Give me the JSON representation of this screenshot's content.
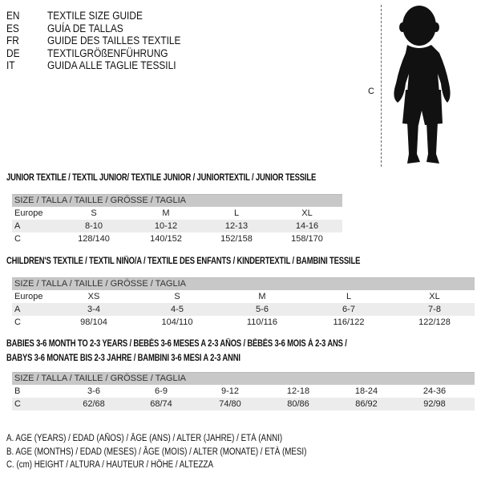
{
  "languages": [
    {
      "code": "EN",
      "text": "TEXTILE SIZE GUIDE"
    },
    {
      "code": "ES",
      "text": "GUÍA DE TALLAS"
    },
    {
      "code": "FR",
      "text": "GUIDE DES TAILLES TEXTILE"
    },
    {
      "code": "DE",
      "text": "TEXTILGRÖßENFÜHRUNG"
    },
    {
      "code": "IT",
      "text": "GUIDA ALLE TAGLIE TESSILI"
    }
  ],
  "figure": {
    "measure_label": "C",
    "icon": "baby-silhouette"
  },
  "junior": {
    "title": "JUNIOR TEXTILE / TEXTIL JUNIOR/ TEXTILE JUNIOR / JUNIORTEXTIL / JUNIOR TESSILE",
    "header": "SIZE / TALLA / TAILLE / GRÖSSE / TAGLIA",
    "rows": [
      {
        "label": "Europe",
        "values": [
          "S",
          "M",
          "L",
          "XL"
        ]
      },
      {
        "label": "A",
        "values": [
          "8-10",
          "10-12",
          "12-13",
          "14-16"
        ]
      },
      {
        "label": "C",
        "values": [
          "128/140",
          "140/152",
          "152/158",
          "158/170"
        ]
      }
    ]
  },
  "children": {
    "title": "CHILDREN'S TEXTILE / TEXTIL NIÑO/A / TEXTILE DES ENFANTS / KINDERTEXTIL / BAMBINI TESSILE",
    "header": "SIZE / TALLA / TAILLE / GRÖSSE / TAGLIA",
    "rows": [
      {
        "label": "Europe",
        "values": [
          "XS",
          "S",
          "M",
          "L",
          "XL"
        ]
      },
      {
        "label": "A",
        "values": [
          "3-4",
          "4-5",
          "5-6",
          "6-7",
          "7-8"
        ]
      },
      {
        "label": "C",
        "values": [
          "98/104",
          "104/110",
          "110/116",
          "116/122",
          "122/128"
        ]
      }
    ]
  },
  "babies": {
    "title_line1": "BABIES 3-6 MONTH TO 2-3 YEARS / BEBÉS 3-6 MESES A 2-3 AÑOS / BÉBÉS 3-6 MOIS À 2-3 ANS /",
    "title_line2": "BABYS 3-6 MONATE BIS 2-3 JAHRE / BAMBINI 3-6 MESI A 2-3 ANNI",
    "header": "SIZE / TALLA / TAILLE / GRÖSSE / TAGLIA",
    "rows": [
      {
        "label": "B",
        "values": [
          "3-6",
          "6-9",
          "9-12",
          "12-18",
          "18-24",
          "24-36"
        ]
      },
      {
        "label": "C",
        "values": [
          "62/68",
          "68/74",
          "74/80",
          "80/86",
          "86/92",
          "92/98"
        ]
      }
    ]
  },
  "legend": [
    "A. AGE (YEARS) / EDAD (AÑOS) / ÂGE (ANS) / ALTER (JAHRE) / ETÀ (ANNI)",
    "B. AGE (MONTHS) / EDAD (MESES) / ÂGE (MOIS) / ALTER (MONATE) / ETÀ (MESI)",
    "C. (cm) HEIGHT / ALTURA / HAUTEUR / HÖHE / ALTEZZA"
  ]
}
